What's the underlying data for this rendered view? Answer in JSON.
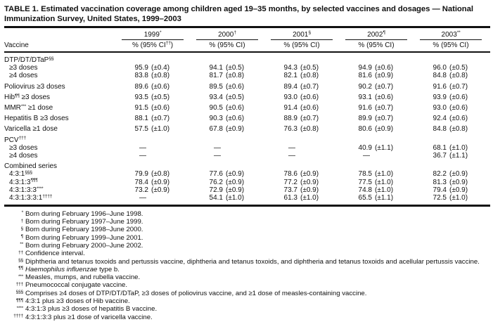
{
  "title": "TABLE 1. Estimated vaccination coverage among children aged 19–35 months, by selected vaccines and dosages — National Immunization Survey, United States, 1999–2003",
  "header": {
    "vaccine_label": "Vaccine"
  },
  "columns": [
    {
      "year": "1999",
      "sup": "*",
      "ci_pre": "% (95% CI",
      "ci_sup": "††",
      "ci_post": ")"
    },
    {
      "year": "2000",
      "sup": "†",
      "ci_pre": "% (95% CI",
      "ci_sup": "",
      "ci_post": ")"
    },
    {
      "year": "2001",
      "sup": "§",
      "ci_pre": "% (95% CI",
      "ci_sup": "",
      "ci_post": ")"
    },
    {
      "year": "2002",
      "sup": "¶",
      "ci_pre": "% (95% CI",
      "ci_sup": "",
      "ci_post": ")"
    },
    {
      "year": "2003",
      "sup": "**",
      "ci_pre": "% (95% CI",
      "ci_sup": "",
      "ci_post": ")"
    }
  ],
  "rows": [
    {
      "kind": "group",
      "pre": "DTP/DT/DTaP",
      "sup": "§§",
      "post": "",
      "spacing": "sm"
    },
    {
      "kind": "data",
      "indent": true,
      "pre": "≥3 doses",
      "sup": "",
      "post": "",
      "cells": [
        [
          "95.9",
          "(±0.4)"
        ],
        [
          "94.1",
          "(±0.5)"
        ],
        [
          "94.3",
          "(±0.5)"
        ],
        [
          "94.9",
          "(±0.6)"
        ],
        [
          "96.0",
          "(±0.5)"
        ]
      ]
    },
    {
      "kind": "data",
      "indent": true,
      "pre": "≥4 doses",
      "sup": "",
      "post": "",
      "cells": [
        [
          "83.8",
          "(±0.8)"
        ],
        [
          "81.7",
          "(±0.8)"
        ],
        [
          "82.1",
          "(±0.8)"
        ],
        [
          "81.6",
          "(±0.9)"
        ],
        [
          "84.8",
          "(±0.8)"
        ]
      ]
    },
    {
      "kind": "data",
      "pre": "Poliovirus ≥3 doses",
      "sup": "",
      "post": "",
      "spacing": "md",
      "cells": [
        [
          "89.6",
          "(±0.6)"
        ],
        [
          "89.5",
          "(±0.6)"
        ],
        [
          "89.4",
          "(±0.7)"
        ],
        [
          "90.2",
          "(±0.7)"
        ],
        [
          "91.6",
          "(±0.7)"
        ]
      ]
    },
    {
      "kind": "data",
      "pre": "Hib",
      "sup": "¶¶",
      "post": " ≥3 doses",
      "spacing": "md",
      "cells": [
        [
          "93.5",
          "(±0.5)"
        ],
        [
          "93.4",
          "(±0.5)"
        ],
        [
          "93.0",
          "(±0.6)"
        ],
        [
          "93.1",
          "(±0.6)"
        ],
        [
          "93.9",
          "(±0.6)"
        ]
      ]
    },
    {
      "kind": "data",
      "pre": "MMR",
      "sup": "***",
      "post": " ≥1 dose",
      "spacing": "md",
      "cells": [
        [
          "91.5",
          "(±0.6)"
        ],
        [
          "90.5",
          "(±0.6)"
        ],
        [
          "91.4",
          "(±0.6)"
        ],
        [
          "91.6",
          "(±0.7)"
        ],
        [
          "93.0",
          "(±0.6)"
        ]
      ]
    },
    {
      "kind": "data",
      "pre": "Hepatitis B ≥3 doses",
      "sup": "",
      "post": "",
      "spacing": "md",
      "cells": [
        [
          "88.1",
          "(±0.7)"
        ],
        [
          "90.3",
          "(±0.6)"
        ],
        [
          "88.9",
          "(±0.7)"
        ],
        [
          "89.9",
          "(±0.7)"
        ],
        [
          "92.4",
          "(±0.6)"
        ]
      ]
    },
    {
      "kind": "data",
      "pre": "Varicella ≥1 dose",
      "sup": "",
      "post": "",
      "spacing": "md",
      "cells": [
        [
          "57.5",
          "(±1.0)"
        ],
        [
          "67.8",
          "(±0.9)"
        ],
        [
          "76.3",
          "(±0.8)"
        ],
        [
          "80.6",
          "(±0.9)"
        ],
        [
          "84.8",
          "(±0.8)"
        ]
      ]
    },
    {
      "kind": "group",
      "pre": "PCV",
      "sup": "†††",
      "post": "",
      "spacing": "md"
    },
    {
      "kind": "data",
      "indent": true,
      "pre": "≥3 doses",
      "sup": "",
      "post": "",
      "cells": [
        "—",
        "—",
        "—",
        [
          "40.9",
          "(±1.1)"
        ],
        [
          "68.1",
          "(±1.0)"
        ]
      ]
    },
    {
      "kind": "data",
      "indent": true,
      "pre": "≥4 doses",
      "sup": "",
      "post": "",
      "cells": [
        "—",
        "—",
        "—",
        "—",
        [
          "36.7",
          "(±1.1)"
        ]
      ]
    },
    {
      "kind": "group",
      "pre": "Combined series",
      "sup": "",
      "post": "",
      "spacing": "md"
    },
    {
      "kind": "data",
      "indent": true,
      "pre": "4:3:1",
      "sup": "§§§",
      "post": "",
      "cells": [
        [
          "79.9",
          "(±0.8)"
        ],
        [
          "77.6",
          "(±0.9)"
        ],
        [
          "78.6",
          "(±0.9)"
        ],
        [
          "78.5",
          "(±1.0)"
        ],
        [
          "82.2",
          "(±0.9)"
        ]
      ]
    },
    {
      "kind": "data",
      "indent": true,
      "pre": "4:3:1:3",
      "sup": "¶¶¶",
      "post": "",
      "cells": [
        [
          "78.4",
          "(±0.9)"
        ],
        [
          "76.2",
          "(±0.9)"
        ],
        [
          "77.2",
          "(±0.9)"
        ],
        [
          "77.5",
          "(±1.0)"
        ],
        [
          "81.3",
          "(±0.9)"
        ]
      ]
    },
    {
      "kind": "data",
      "indent": true,
      "pre": "4:3:1:3:3",
      "sup": "****",
      "post": "",
      "cells": [
        [
          "73.2",
          "(±0.9)"
        ],
        [
          "72.9",
          "(±0.9)"
        ],
        [
          "73.7",
          "(±0.9)"
        ],
        [
          "74.8",
          "(±1.0)"
        ],
        [
          "79.4",
          "(±0.9)"
        ]
      ]
    },
    {
      "kind": "data",
      "indent": true,
      "pre": "4:3:1:3:3:1",
      "sup": "††††",
      "post": "",
      "cells": [
        "—",
        [
          "54.1",
          "(±1.0)"
        ],
        [
          "61.3",
          "(±1.0)"
        ],
        [
          "65.5",
          "(±1.1)"
        ],
        [
          "72.5",
          "(±1.0)"
        ]
      ]
    }
  ],
  "footnotes": [
    {
      "marker": "*",
      "text": "Born during February 1996–June 1998."
    },
    {
      "marker": "†",
      "text": "Born during February 1997–June 1999."
    },
    {
      "marker": "§",
      "text": "Born during February 1998–June 2000."
    },
    {
      "marker": "¶",
      "text": "Born during February 1999–June 2001."
    },
    {
      "marker": "**",
      "text": "Born during February 2000–June 2002."
    },
    {
      "marker": "††",
      "text": "Confidence interval."
    },
    {
      "marker": "§§",
      "text": "Diphtheria and tetanus toxoids and pertussis vaccine, diphtheria and tetanus toxoids, and diphtheria and tetanus toxoids and acellular pertussis vaccine.",
      "justify": true
    },
    {
      "marker": "¶¶",
      "italic": "Haemophilus influenzae",
      "text": " type b."
    },
    {
      "marker": "***",
      "text": "Measles, mumps, and rubella vaccine."
    },
    {
      "marker": "†††",
      "text": "Pneumococcal conjugate vaccine."
    },
    {
      "marker": "§§§",
      "text": "Comprises ≥4 doses of DTP/DT/DTaP, ≥3 doses of poliovirus vaccine, and ≥1 dose of measles-containing vaccine."
    },
    {
      "marker": "¶¶¶",
      "text": "4:3:1 plus ≥3 doses of Hib vaccine."
    },
    {
      "marker": "****",
      "text": "4:3:1:3 plus ≥3 doses of hepatitis B vaccine."
    },
    {
      "marker": "††††",
      "text": "4:3:1:3:3 plus ≥1 dose of varicella vaccine."
    }
  ]
}
